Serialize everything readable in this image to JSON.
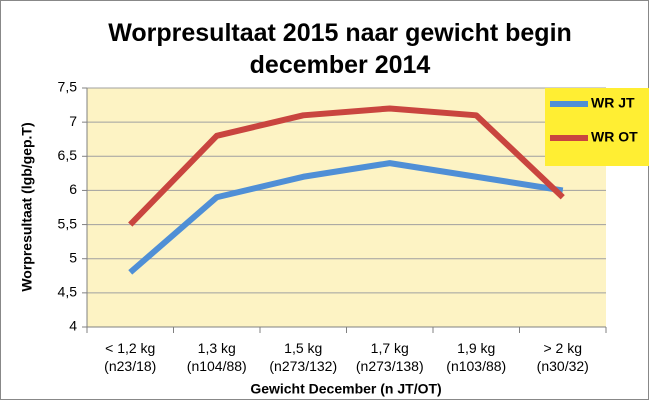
{
  "chart_data": {
    "type": "line",
    "title": "Worpresultaat 2015 naar gewicht begin december 2014",
    "y_label": "Worpresultaat (lgb/gep.T)",
    "x_label": "Gewicht December (n JT/OT)",
    "categories": [
      "< 1,2 kg\n(n23/18)",
      "1,3 kg\n(n104/88)",
      "1,5 kg\n(n273/132)",
      "1,7 kg\n(n273/138)",
      "1,9 kg\n(n103/88)",
      "> 2 kg\n(n30/32)"
    ],
    "series": [
      {
        "name": "WR JT",
        "color": "#4f8fd6",
        "values": [
          4.8,
          5.9,
          6.2,
          6.4,
          6.2,
          6.0
        ]
      },
      {
        "name": "WR OT",
        "color": "#c9453f",
        "values": [
          5.5,
          6.8,
          7.1,
          7.2,
          7.1,
          5.9
        ]
      }
    ],
    "ylim": [
      4,
      7.5
    ],
    "yticks": [
      4,
      {
        "value": 4.5,
        "label": "4,5"
      },
      5,
      {
        "value": 5.5,
        "label": "5,5"
      },
      6,
      {
        "value": 6.5,
        "label": "6,5"
      },
      7,
      {
        "value": 7.5,
        "label": "7,5"
      }
    ],
    "grid": true,
    "legend": "right"
  }
}
